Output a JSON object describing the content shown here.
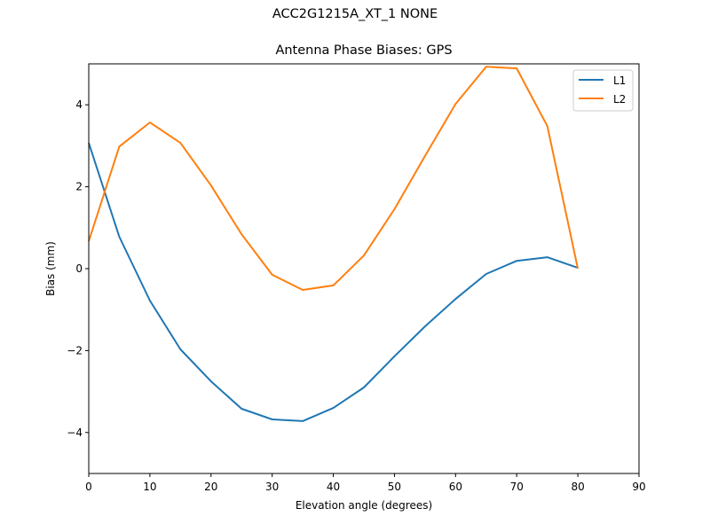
{
  "figure": {
    "suptitle": "ACC2G1215A_XT_1 NONE",
    "title": "Antenna Phase Biases: GPS"
  },
  "chart_data": {
    "type": "line",
    "title": "Antenna Phase Biases: GPS",
    "suptitle": "ACC2G1215A_XT_1 NONE",
    "xlabel": "Elevation angle (degrees)",
    "ylabel": "Bias (mm)",
    "xlim": [
      0,
      90
    ],
    "ylim": [
      -5,
      5
    ],
    "xticks": [
      0,
      10,
      20,
      30,
      40,
      50,
      60,
      70,
      80,
      90
    ],
    "yticks": [
      -4,
      -2,
      0,
      2,
      4
    ],
    "ytick_labels": [
      "−4",
      "−2",
      "0",
      "2",
      "4"
    ],
    "grid": false,
    "legend_position": "upper right",
    "x": [
      0,
      5,
      10,
      15,
      20,
      25,
      30,
      35,
      40,
      45,
      50,
      55,
      60,
      65,
      70,
      75,
      80
    ],
    "series": [
      {
        "name": "L1",
        "color": "#1f77b4",
        "values": [
          3.07,
          0.78,
          -0.78,
          -1.97,
          -2.75,
          -3.42,
          -3.68,
          -3.72,
          -3.4,
          -2.9,
          -2.14,
          -1.41,
          -0.74,
          -0.13,
          0.19,
          0.28,
          0.02
        ]
      },
      {
        "name": "L2",
        "color": "#ff7f0e",
        "values": [
          0.67,
          2.98,
          3.57,
          3.07,
          2.03,
          0.84,
          -0.15,
          -0.52,
          -0.41,
          0.32,
          1.45,
          2.75,
          4.02,
          4.93,
          4.89,
          3.48,
          0.0
        ]
      }
    ]
  }
}
